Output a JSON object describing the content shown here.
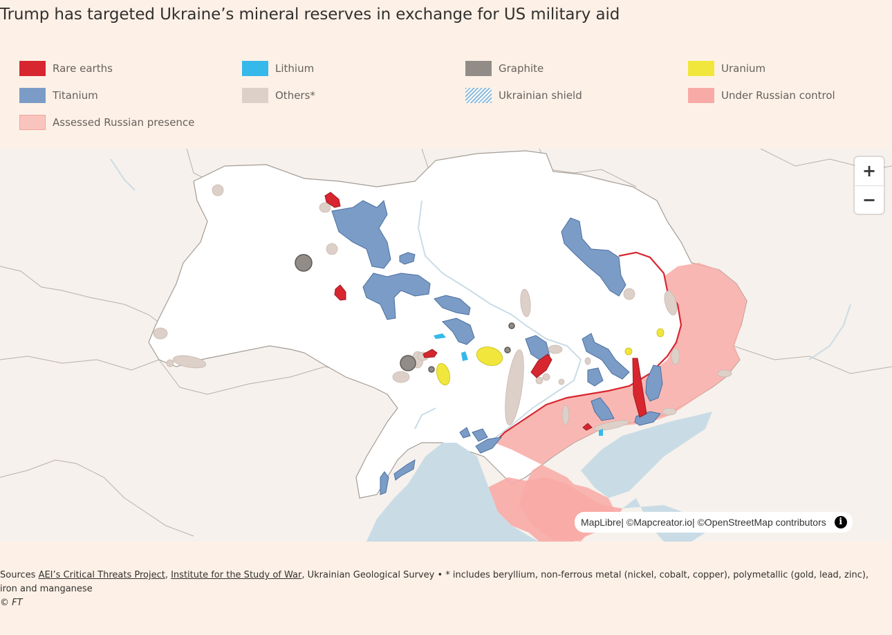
{
  "title": "Trump has targeted Ukraine’s mineral reserves in exchange for US military aid",
  "legend": [
    {
      "label": "Rare earths",
      "color": "#d7262f",
      "pattern": "solid"
    },
    {
      "label": "Lithium",
      "color": "#35b8ea",
      "pattern": "solid"
    },
    {
      "label": "Graphite",
      "color": "#928c88",
      "pattern": "solid"
    },
    {
      "label": "Uranium",
      "color": "#f1e63c",
      "pattern": "solid"
    },
    {
      "label": "Titanium",
      "color": "#7b9cc6",
      "pattern": "solid"
    },
    {
      "label": "Others*",
      "color": "#ddd0c8",
      "pattern": "solid"
    },
    {
      "label": "Ukrainian shield",
      "color": "#8fbad9",
      "pattern": "hatched"
    },
    {
      "label": "Under Russian control",
      "color": "#f8aaa6",
      "pattern": "solid"
    },
    {
      "label": "Assessed Russian presence",
      "color": "#fac4be",
      "pattern": "solid"
    }
  ],
  "map": {
    "zoom_in": "+",
    "zoom_out": "−",
    "attribution": {
      "maplibre": "MapLibre",
      "sep1": " | © ",
      "mapcreator": "Mapcreator.io",
      "sep2": " | © ",
      "osm": "OpenStreetMap contributors"
    },
    "info_icon": "i",
    "colors": {
      "land": "#f6f1ec",
      "ukraine": "#ffffff",
      "sea": "#c9dce6",
      "border": "#a8a29e",
      "front_line": "#d7262f"
    }
  },
  "footer": {
    "sources_prefix": "Sources ",
    "source1": "AEI’s Critical Threats Project",
    "comma": ", ",
    "source2": "Institute for the Study of War",
    "rest": ", Ukrainian Geological Survey • * includes beryllium, non-ferrous metal (nickel, cobalt, copper), polymetallic (gold, lead, zinc),",
    "line2": "iron and manganese",
    "copyright": "© FT"
  }
}
